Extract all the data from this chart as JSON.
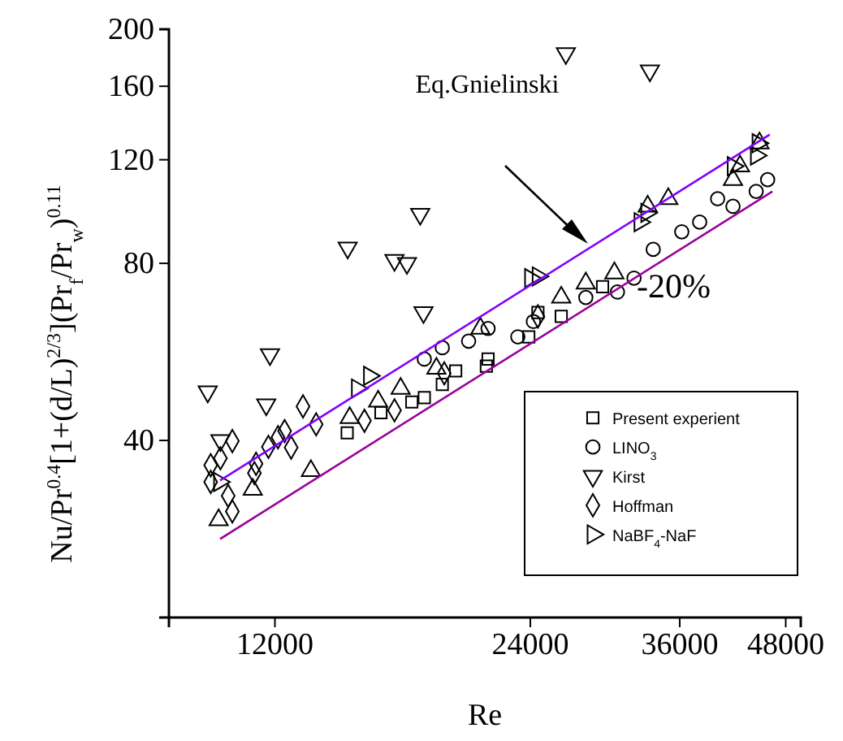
{
  "chart_data": {
    "type": "scatter",
    "xlabel": "Re",
    "ylabel": "Nu/Pr$^{0.4}$[1+(d/L)$^{2/3}$](Pr$_{f}$/Pr$_{w}$)$^{0.11}$",
    "log": "xy",
    "xlim": [
      9000,
      50000
    ],
    "xticks": [
      12000,
      24000,
      36000,
      48000
    ],
    "ylim": [
      20,
      200
    ],
    "yticks": [
      40,
      80,
      120,
      160,
      200
    ],
    "grid": false,
    "legend": "bottom right",
    "annotations": [
      "Eq.Gnielinski",
      "-20%"
    ],
    "series": [
      {
        "name": "Present experient",
        "color": "#000000",
        "marker": "square",
        "x": [
          14600,
          16000,
          17400,
          18000,
          18900,
          19600,
          21300,
          21400,
          23900,
          24500,
          26100,
          29200
        ],
        "values": [
          41.2,
          44.6,
          46.5,
          47.3,
          49.8,
          52.5,
          53.5,
          55,
          60,
          66,
          65,
          73
        ]
      },
      {
        "color": "#000000",
        "marker": "triangle",
        "x": [
          10300,
          11300,
          13230,
          14700,
          15880,
          16880,
          18600,
          20960,
          26100,
          27900,
          30150,
          33000,
          34900,
          41600,
          42400,
          44700
        ],
        "values": [
          29.3,
          33,
          35.5,
          43.7,
          46.6,
          49,
          53,
          62,
          70,
          74,
          77,
          100,
          103,
          111,
          117,
          128
        ]
      },
      {
        "name": "LINO$_{3}$",
        "color": "#000000",
        "marker": "circle",
        "x": [
          18000,
          18900,
          20300,
          21400,
          23200,
          24200,
          27900,
          30400,
          31800,
          33500,
          36200,
          38000,
          39900,
          41600,
          44300,
          45700
        ],
        "values": [
          55,
          57.5,
          59,
          62,
          60,
          63.7,
          70,
          71.5,
          75.5,
          84.5,
          90.5,
          94,
          103,
          100,
          106,
          111
        ]
      },
      {
        "name": "Kirst",
        "color": "#000000",
        "marker": "triangle-down",
        "x": [
          10000,
          10350,
          11720,
          11840,
          14620,
          16600,
          17170,
          17800,
          17960,
          26430,
          33200
        ],
        "values": [
          48.4,
          40,
          46,
          56,
          85,
          81,
          80,
          97,
          66,
          182,
          170
        ]
      },
      {
        "name": "Hoffman",
        "color": "#000000",
        "marker": "diamond",
        "x": [
          10080,
          10080,
          10350,
          10570,
          10690,
          10690,
          11350,
          11400,
          11790,
          12100,
          12320,
          12540,
          12950,
          13420,
          15300,
          16600,
          19000,
          24500
        ],
        "values": [
          36.3,
          34,
          37.3,
          32.2,
          39.9,
          30.3,
          35.2,
          36.5,
          39,
          40.5,
          41.5,
          38.9,
          45.7,
          42.6,
          43.2,
          45,
          52,
          65
        ]
      },
      {
        "name": "NaBF$_{4}$-NaF",
        "color": "#000000",
        "marker": "triangle-right",
        "x": [
          10320,
          15000,
          15500,
          24000,
          24500,
          32300,
          32900,
          41600,
          44300,
          44500
        ],
        "values": [
          34,
          49,
          51.5,
          75.5,
          76,
          94,
          97.5,
          117,
          122,
          128
        ]
      },
      {
        "type": "line",
        "color": "#8000ff",
        "x": [
          10340,
          45960
        ],
        "values": [
          34.2,
          132.4
        ]
      },
      {
        "type": "line",
        "color": "#990099",
        "x": [
          10340,
          46300
        ],
        "values": [
          27.2,
          106
        ]
      }
    ]
  }
}
